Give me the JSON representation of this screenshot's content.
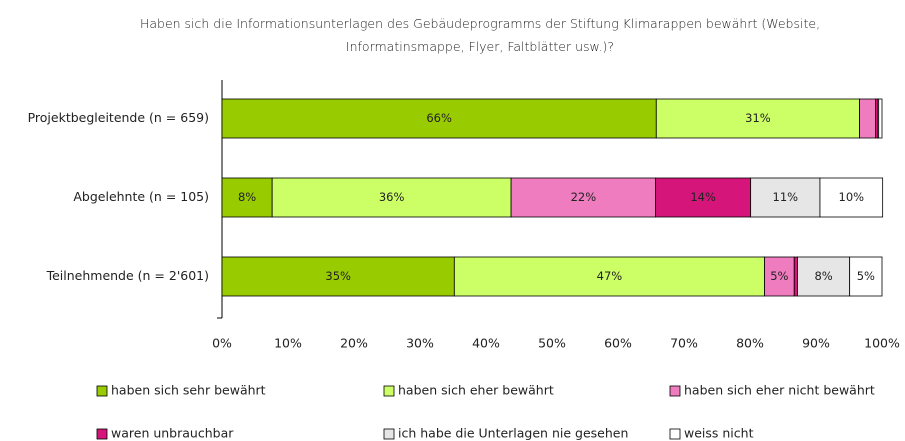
{
  "chart_data": {
    "type": "stacked-barh",
    "title": "Haben sich die Informationsunterlagen des Gebäudeprogramms der Stiftung Klimarappen bewährt (Website, Informatinsmappe, Flyer, Faltblätter usw.)?",
    "categories": [
      "Projektbegleitende (n = 659)",
      "Abgelehnte (n = 105)",
      "Teilnehmende (n = 2'601)"
    ],
    "series": [
      {
        "name": "haben sich sehr bewährt",
        "color": "#99cc00",
        "values": [
          65.8,
          7.6,
          35.2
        ],
        "value_labels": [
          "66%",
          "8%",
          "35%"
        ]
      },
      {
        "name": "haben sich eher bewährt",
        "color": "#ccff66",
        "values": [
          30.8,
          36.2,
          47
        ],
        "value_labels": [
          "31%",
          "36%",
          "47%"
        ]
      },
      {
        "name": "haben sich eher nicht bewährt",
        "color": "#f07cc0",
        "values": [
          2.4,
          21.9,
          4.5
        ],
        "value_labels": [
          null,
          "22%",
          "5%"
        ]
      },
      {
        "name": "waren unbrauchbar",
        "color": "#d6157a",
        "values": [
          0.3,
          14.4,
          0.5
        ],
        "value_labels": [
          null,
          "14%",
          null
        ]
      },
      {
        "name": "ich habe die Unterlagen nie gesehen",
        "color": "#e6e6e6",
        "values": [
          0.2,
          10.5,
          7.9
        ],
        "value_labels": [
          null,
          "11%",
          "8%"
        ]
      },
      {
        "name": "weiss nicht",
        "color": "#ffffff",
        "values": [
          0.5,
          9.5,
          4.9
        ],
        "value_labels": [
          null,
          "10%",
          "5%"
        ]
      }
    ],
    "xlim": [
      0,
      100
    ],
    "xticks": [
      {
        "value": 0,
        "label": "0%"
      },
      {
        "value": 10,
        "label": "10%"
      },
      {
        "value": 20,
        "label": "20%"
      },
      {
        "value": 30,
        "label": "30%"
      },
      {
        "value": 40,
        "label": "40%"
      },
      {
        "value": 50,
        "label": "50%"
      },
      {
        "value": 60,
        "label": "60%"
      },
      {
        "value": 70,
        "label": "70%"
      },
      {
        "value": 80,
        "label": "80%"
      },
      {
        "value": 90,
        "label": "90%"
      },
      {
        "value": 100,
        "label": "100%"
      }
    ]
  }
}
